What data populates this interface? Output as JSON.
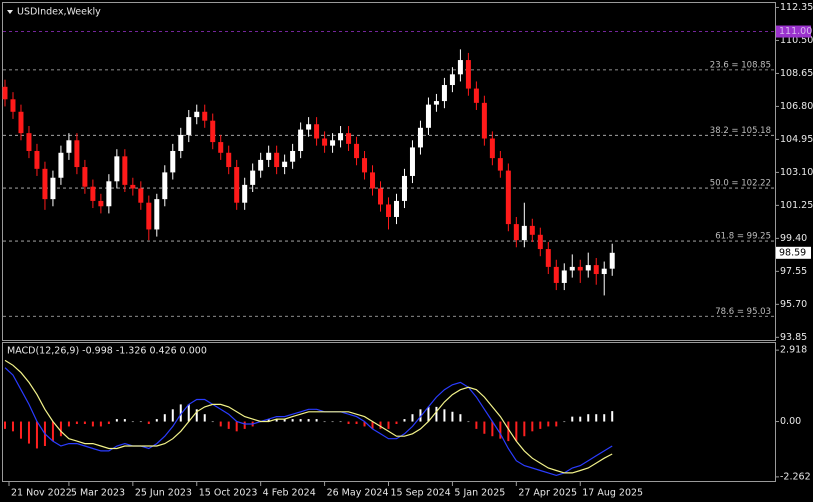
{
  "chart_data": [
    {
      "type": "candlestick",
      "title": "USDIndex,Weekly",
      "x": [
        -1,
        1,
        3,
        5,
        7,
        9,
        11,
        13,
        15,
        17,
        19,
        21,
        23,
        25,
        27,
        29,
        31,
        33,
        35,
        37,
        39,
        41,
        43,
        45,
        47,
        49,
        51,
        53,
        55,
        57,
        59,
        61,
        63,
        65,
        67,
        69,
        71,
        73,
        75,
        77,
        79,
        81,
        83,
        85,
        87,
        89,
        91,
        93,
        95,
        97,
        99,
        101,
        103,
        105,
        107,
        109,
        111,
        113,
        115,
        117,
        119,
        121,
        123,
        125,
        127,
        129,
        131,
        133,
        135,
        137,
        139,
        141,
        143,
        145,
        147,
        149,
        151
      ],
      "open": [
        107.9,
        107.2,
        106.5,
        105.3,
        104.3,
        103.3,
        101.6,
        102.8,
        104.2,
        104.9,
        103.4,
        102.3,
        101.5,
        101.2,
        102.6,
        104.0,
        102.4,
        102.2,
        101.4,
        99.9,
        101.6,
        103.1,
        104.3,
        105.2,
        106.2,
        106.5,
        106.0,
        104.8,
        104.2,
        103.4,
        101.4,
        102.4,
        103.2,
        103.8,
        104.2,
        103.4,
        103.7,
        104.3,
        105.5,
        105.8,
        105.0,
        104.6,
        104.9,
        105.3,
        104.7,
        103.9,
        103.1,
        102.2,
        101.3,
        100.6,
        101.5,
        102.9,
        104.5,
        105.6,
        106.9,
        107.1,
        108.0,
        108.6,
        109.4,
        107.8,
        107.0,
        105.0,
        103.9,
        103.2,
        100.2,
        99.3,
        100.1,
        99.6,
        98.8,
        97.8,
        96.9,
        97.6,
        97.8,
        97.6,
        97.9,
        97.4,
        97.7
      ],
      "high": [
        108.3,
        107.6,
        106.9,
        105.7,
        104.7,
        103.7,
        103.2,
        104.6,
        105.3,
        105.3,
        103.8,
        102.7,
        101.9,
        103.0,
        104.4,
        104.4,
        102.8,
        102.6,
        101.8,
        101.9,
        103.5,
        104.7,
        105.6,
        106.6,
        106.9,
        106.9,
        106.4,
        105.2,
        104.6,
        103.8,
        102.8,
        103.6,
        104.2,
        104.6,
        104.6,
        104.1,
        104.7,
        105.9,
        106.2,
        106.2,
        105.4,
        105.3,
        105.7,
        105.7,
        105.1,
        104.3,
        103.5,
        102.6,
        101.7,
        101.9,
        103.3,
        104.9,
        106.0,
        107.3,
        107.5,
        108.4,
        109.0,
        110.0,
        109.8,
        108.2,
        107.4,
        105.4,
        104.3,
        103.6,
        100.6,
        101.4,
        100.5,
        100.0,
        99.2,
        98.2,
        98.0,
        98.5,
        98.2,
        98.6,
        98.3,
        98.1,
        99.1
      ],
      "low": [
        106.8,
        106.1,
        104.9,
        103.9,
        102.9,
        101.0,
        101.2,
        102.4,
        103.8,
        103.0,
        101.9,
        101.1,
        100.8,
        100.8,
        102.2,
        102.0,
        101.8,
        101.0,
        99.3,
        99.5,
        101.2,
        102.7,
        103.9,
        104.8,
        105.8,
        105.6,
        104.4,
        103.8,
        103.0,
        101.0,
        101.0,
        102.0,
        102.8,
        103.4,
        103.0,
        103.0,
        103.3,
        103.9,
        105.1,
        104.6,
        104.2,
        104.2,
        104.5,
        104.3,
        103.5,
        102.7,
        101.8,
        100.9,
        99.9,
        100.2,
        101.1,
        102.5,
        104.1,
        105.2,
        106.5,
        106.7,
        107.6,
        108.2,
        107.4,
        106.6,
        104.6,
        103.5,
        102.8,
        99.8,
        98.9,
        98.9,
        99.2,
        98.4,
        97.4,
        96.5,
        96.5,
        97.2,
        96.9,
        97.2,
        96.8,
        96.2,
        97.3
      ],
      "close": [
        107.2,
        106.5,
        105.3,
        104.3,
        103.3,
        101.6,
        102.8,
        104.2,
        104.9,
        103.4,
        102.3,
        101.5,
        101.2,
        102.6,
        104.0,
        102.4,
        102.2,
        101.4,
        99.9,
        101.6,
        103.1,
        104.3,
        105.2,
        106.2,
        106.5,
        106.0,
        104.8,
        104.2,
        103.4,
        101.4,
        102.4,
        103.2,
        103.8,
        104.2,
        103.4,
        103.7,
        104.3,
        105.5,
        105.8,
        105.0,
        104.6,
        104.9,
        105.3,
        104.7,
        103.9,
        103.1,
        102.2,
        101.3,
        100.6,
        101.5,
        102.9,
        104.5,
        105.6,
        106.9,
        107.1,
        108.0,
        108.6,
        109.4,
        107.8,
        107.0,
        105.0,
        103.9,
        103.2,
        100.2,
        99.3,
        100.1,
        99.6,
        98.8,
        97.8,
        96.9,
        97.6,
        97.8,
        97.6,
        97.9,
        97.4,
        97.7,
        98.59
      ],
      "bull_color": "#ffffff",
      "bear_color": "#ff1a1a",
      "xlim": [
        -1.5,
        191.75
      ],
      "xticks": [
        {
          "value": 0,
          "label": "21 Nov 2022"
        },
        {
          "value": 15,
          "label": "5 Mar 2023"
        },
        {
          "value": 31,
          "label": "25 Jun 2023"
        },
        {
          "value": 47,
          "label": "15 Oct 2023"
        },
        {
          "value": 63,
          "label": "4 Feb 2024"
        },
        {
          "value": 79,
          "label": "26 May 2024"
        },
        {
          "value": 95,
          "label": "15 Sep 2024"
        },
        {
          "value": 111,
          "label": "5 Jan 2025"
        },
        {
          "value": 127,
          "label": "27 Apr 2025"
        },
        {
          "value": 143,
          "label": "17 Aug 2025"
        }
      ],
      "ylim": [
        93.7,
        112.6
      ],
      "yticks": [
        112.35,
        {
          "value": 110.5,
          "label": "110.50"
        },
        108.65,
        {
          "value": 106.8,
          "label": "106.80"
        },
        104.95,
        {
          "value": 103.1,
          "label": "103.10"
        },
        101.25,
        {
          "value": 99.4,
          "label": "99.40"
        },
        97.55,
        {
          "value": 95.7,
          "label": "95.70"
        },
        93.85
      ],
      "levels": [
        {
          "value": 108.85,
          "label": "23.6 = 108.85"
        },
        {
          "value": 105.18,
          "label": "38.2 = 105.18"
        },
        {
          "value": 102.22,
          "label": "50.0 = 102.22"
        },
        {
          "value": 99.25,
          "label": "61.8 = 99.25"
        },
        {
          "value": 95.03,
          "label": "78.6 = 95.03"
        }
      ],
      "level_color": "#bdbdbd",
      "price_line": {
        "value": 111.0,
        "label": "111.00",
        "color": "#9a32cd"
      }
    },
    {
      "type": "macd",
      "title": "MACD(12,26,9) -0.998 -1.326 0.426 0.000",
      "ylim": [
        -2.43,
        3.21
      ],
      "yticks": [
        2.918,
        {
          "value": 0,
          "label": "0.00"
        },
        -2.262
      ],
      "histogram": {
        "up_color": "#ffffff",
        "down_color": "#ff2020",
        "values": [
          -0.3,
          -0.4,
          -0.7,
          -0.9,
          -1.1,
          -1.0,
          -0.8,
          -0.6,
          -0.2,
          -0.1,
          -0.1,
          -0.2,
          -0.2,
          -0.1,
          0.1,
          0.1,
          0.0,
          0.0,
          -0.1,
          0.1,
          0.3,
          0.5,
          0.7,
          0.7,
          0.5,
          0.3,
          0.0,
          -0.2,
          -0.3,
          -0.4,
          -0.3,
          -0.2,
          0.0,
          0.1,
          0.1,
          0.1,
          0.1,
          0.1,
          0.1,
          0.1,
          0.0,
          0.0,
          0.0,
          -0.1,
          -0.1,
          -0.2,
          -0.3,
          -0.3,
          -0.3,
          -0.1,
          0.1,
          0.3,
          0.5,
          0.6,
          0.6,
          0.5,
          0.4,
          0.3,
          0.0,
          -0.3,
          -0.5,
          -0.6,
          -0.7,
          -0.8,
          -0.8,
          -0.6,
          -0.4,
          -0.3,
          -0.2,
          -0.2,
          0.0,
          0.2,
          0.2,
          0.3,
          0.3,
          0.3,
          0.426
        ]
      },
      "lines": [
        {
          "color": "#2a3cff",
          "values": [
            2.2,
            1.9,
            1.3,
            0.7,
            0.0,
            -0.5,
            -0.8,
            -1.0,
            -0.9,
            -0.9,
            -1.0,
            -1.1,
            -1.2,
            -1.2,
            -1.0,
            -0.9,
            -1.0,
            -1.0,
            -1.1,
            -0.9,
            -0.6,
            -0.2,
            0.3,
            0.7,
            0.9,
            0.9,
            0.7,
            0.5,
            0.3,
            0.0,
            -0.1,
            -0.1,
            0.0,
            0.1,
            0.2,
            0.2,
            0.3,
            0.4,
            0.5,
            0.5,
            0.4,
            0.4,
            0.4,
            0.3,
            0.2,
            0.0,
            -0.3,
            -0.5,
            -0.7,
            -0.7,
            -0.5,
            -0.2,
            0.2,
            0.6,
            1.0,
            1.3,
            1.5,
            1.6,
            1.4,
            1.0,
            0.5,
            0.0,
            -0.5,
            -1.1,
            -1.6,
            -1.8,
            -1.9,
            -2.0,
            -2.1,
            -2.2,
            -2.1,
            -1.9,
            -1.8,
            -1.6,
            -1.4,
            -1.2,
            -0.998
          ]
        },
        {
          "color": "#f2f28a",
          "values": [
            2.5,
            2.3,
            2.0,
            1.6,
            1.1,
            0.5,
            0.0,
            -0.4,
            -0.7,
            -0.8,
            -0.9,
            -0.9,
            -1.0,
            -1.1,
            -1.1,
            -1.0,
            -1.0,
            -1.0,
            -1.0,
            -1.0,
            -0.9,
            -0.7,
            -0.4,
            0.0,
            0.4,
            0.6,
            0.7,
            0.7,
            0.6,
            0.4,
            0.2,
            0.1,
            0.0,
            0.0,
            0.1,
            0.1,
            0.2,
            0.3,
            0.4,
            0.4,
            0.4,
            0.4,
            0.4,
            0.4,
            0.3,
            0.2,
            0.0,
            -0.2,
            -0.4,
            -0.6,
            -0.6,
            -0.5,
            -0.3,
            0.0,
            0.4,
            0.8,
            1.1,
            1.3,
            1.4,
            1.3,
            1.0,
            0.6,
            0.2,
            -0.3,
            -0.8,
            -1.2,
            -1.5,
            -1.7,
            -1.9,
            -2.0,
            -2.1,
            -2.1,
            -2.0,
            -1.9,
            -1.7,
            -1.5,
            -1.326
          ]
        }
      ]
    }
  ]
}
